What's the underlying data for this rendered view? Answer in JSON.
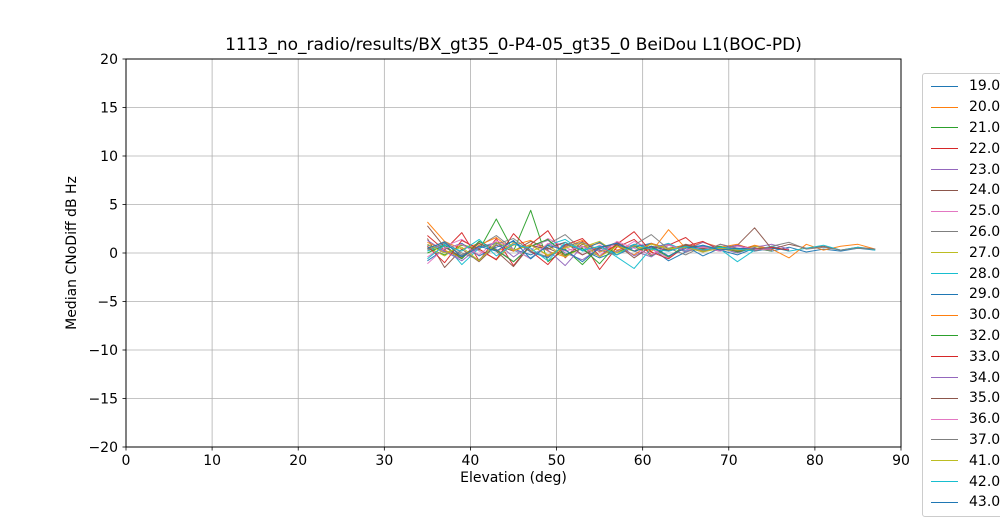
{
  "chart_data": {
    "type": "line",
    "title": "1113_no_radio/results/BX_gt35_0-P4-05_gt35_0 BeiDou L1(BOC-PD)",
    "xlabel": "Elevation (deg)",
    "ylabel": "Median CNoDiff dB Hz",
    "xlim": [
      0,
      90
    ],
    "ylim": [
      -20,
      20
    ],
    "xticks": [
      0,
      10,
      20,
      30,
      40,
      50,
      60,
      70,
      80,
      90
    ],
    "yticks": [
      -20,
      -15,
      -10,
      -5,
      0,
      5,
      10,
      15,
      20
    ],
    "grid": true,
    "grid_color": "#b0b0b0",
    "legend_position": "outside-right",
    "series": [
      {
        "name": "19.0",
        "color": "#1f77b4",
        "x_start": 35,
        "x_step": 2,
        "y": [
          0.8,
          0.2,
          -0.3,
          0.5,
          1.0,
          0.4,
          -0.2,
          0.6,
          1.1,
          0.3,
          -0.5,
          0.2,
          0.9,
          0.5,
          -0.8,
          0.1,
          0.7,
          0.3,
          -0.2,
          0.5,
          0.2,
          0.6,
          0.1,
          0.4,
          0.2,
          0.5,
          0.3
        ]
      },
      {
        "name": "20.0",
        "color": "#ff7f0e",
        "x_start": 35,
        "x_step": 2,
        "y": [
          3.2,
          1.2,
          0.4,
          1.0,
          0.2,
          0.8,
          1.3,
          0.2,
          -0.4,
          0.6,
          1.0,
          0.3,
          0.8,
          0.1,
          2.4,
          0.5,
          1.1,
          0.6,
          0.2,
          0.8,
          0.4,
          -0.5,
          0.9,
          0.3,
          0.7,
          0.9,
          0.4
        ]
      },
      {
        "name": "21.0",
        "color": "#2ca02c",
        "x_start": 35,
        "x_step": 2,
        "y": [
          0.5,
          -0.2,
          0.8,
          0.3,
          3.5,
          0.2,
          4.4,
          -0.9,
          0.4,
          -1.2,
          0.6,
          0.1,
          0.7,
          -0.3,
          0.5,
          0.8,
          0.2,
          0.6,
          0.3,
          0.5,
          0.2
        ]
      },
      {
        "name": "22.0",
        "color": "#d62728",
        "x_start": 35,
        "x_step": 2,
        "y": [
          1.8,
          0.3,
          2.1,
          -0.8,
          1.5,
          -1.3,
          0.9,
          2.3,
          -0.5,
          1.2,
          -1.7,
          0.6,
          1.4,
          -0.2,
          0.8,
          1.6,
          0.1,
          0.9,
          0.4,
          0.7,
          0.3
        ]
      },
      {
        "name": "23.0",
        "color": "#9467bd",
        "x_start": 35,
        "x_step": 2,
        "y": [
          0.9,
          0.1,
          -0.6,
          1.2,
          0.4,
          -0.9,
          0.7,
          1.3,
          0.0,
          -0.7,
          0.5,
          1.0,
          0.2,
          -0.4,
          0.8,
          0.3,
          1.1,
          0.5,
          0.0,
          0.6,
          0.9,
          0.4
        ]
      },
      {
        "name": "24.0",
        "color": "#8c564b",
        "x_start": 35,
        "x_step": 2,
        "y": [
          1.5,
          -1.5,
          0.4,
          -0.9,
          0.8,
          0.2,
          1.2,
          0.5,
          -0.3,
          0.9,
          0.4,
          1.1,
          0.2,
          0.7,
          0.3,
          0.9,
          0.5,
          0.2,
          0.8,
          2.6,
          0.4,
          0.9,
          0.5,
          0.7,
          0.3,
          0.6,
          0.4
        ]
      },
      {
        "name": "25.0",
        "color": "#e377c2",
        "x_start": 35,
        "x_step": 2,
        "y": [
          -0.4,
          0.7,
          1.4,
          0.2,
          -0.6,
          1.0,
          0.3,
          1.5,
          0.6,
          -0.2,
          0.8,
          0.1,
          1.2,
          0.4,
          -0.5,
          0.7,
          0.2,
          0.9,
          0.5,
          0.3,
          0.6
        ]
      },
      {
        "name": "26.0",
        "color": "#7f7f7f",
        "x_start": 35,
        "x_step": 2,
        "y": [
          0.3,
          1.0,
          -0.2,
          0.7,
          1.8,
          0.4,
          -0.6,
          0.9,
          1.9,
          0.3,
          -0.3,
          0.8,
          0.2,
          1.0,
          0.5,
          -0.2,
          0.7,
          0.3,
          0.8,
          0.4,
          0.6,
          0.2
        ]
      },
      {
        "name": "27.0",
        "color": "#bcbd22",
        "x_start": 35,
        "x_step": 2,
        "y": [
          0.6,
          -0.3,
          0.9,
          0.4,
          -0.7,
          1.1,
          0.2,
          0.8,
          -0.4,
          0.6,
          1.2,
          0.0,
          0.7,
          0.3,
          0.9,
          0.1,
          0.6,
          0.4,
          0.2,
          0.7,
          0.3
        ]
      },
      {
        "name": "28.0",
        "color": "#17becf",
        "x_start": 35,
        "x_step": 2,
        "y": [
          0.2,
          0.9,
          -1.2,
          0.5,
          1.1,
          0.3,
          -0.5,
          0.8,
          1.4,
          0.2,
          0.7,
          -0.4,
          -1.6,
          0.5,
          1.0,
          0.2,
          0.8,
          0.4,
          -0.9,
          0.3,
          0.7,
          0.2,
          0.5,
          0.8,
          0.3,
          0.6,
          0.3
        ]
      },
      {
        "name": "29.0",
        "color": "#1f77b4",
        "x_start": 35,
        "x_step": 2,
        "y": [
          -0.8,
          0.4,
          1.0,
          -0.3,
          0.6,
          1.2,
          0.1,
          -0.5,
          0.9,
          0.3,
          1.1,
          -0.2,
          0.6,
          1.0,
          0.2,
          0.7,
          -0.3,
          0.5,
          0.8,
          0.2,
          0.5,
          0.3
        ]
      },
      {
        "name": "30.0",
        "color": "#ff7f0e",
        "x_start": 35,
        "x_step": 2,
        "y": [
          1.1,
          0.3,
          -0.5,
          0.8,
          1.6,
          0.2,
          0.9,
          -0.3,
          0.6,
          1.3,
          0.1,
          0.7,
          -0.2,
          1.0,
          0.4,
          0.8,
          0.2,
          0.6,
          0.9,
          0.3,
          0.5
        ]
      },
      {
        "name": "32.0",
        "color": "#2ca02c",
        "x_start": 35,
        "x_step": 2,
        "y": [
          0.0,
          0.8,
          -0.6,
          1.2,
          0.3,
          -0.9,
          0.7,
          1.4,
          -0.2,
          0.5,
          -1.1,
          0.9,
          0.2,
          0.6,
          -0.4,
          0.8,
          0.3,
          0.7,
          0.1,
          0.5,
          0.3
        ]
      },
      {
        "name": "33.0",
        "color": "#d62728",
        "x_start": 35,
        "x_step": 2,
        "y": [
          0.7,
          -1.0,
          1.3,
          0.4,
          -0.7,
          2.0,
          0.2,
          -1.2,
          0.8,
          1.5,
          -0.3,
          0.9,
          2.2,
          0.1,
          -0.6,
          0.7,
          1.2,
          0.3,
          0.8,
          0.4,
          0.6,
          0.3
        ]
      },
      {
        "name": "34.0",
        "color": "#9467bd",
        "x_start": 35,
        "x_step": 2,
        "y": [
          1.3,
          0.2,
          -0.8,
          0.6,
          1.1,
          -0.4,
          0.8,
          0.3,
          -1.3,
          0.7,
          0.2,
          1.0,
          -0.3,
          0.6,
          0.9,
          0.1,
          0.7,
          0.4,
          0.8,
          0.3,
          0.5
        ]
      },
      {
        "name": "35.0",
        "color": "#8c564b",
        "x_start": 35,
        "x_step": 2,
        "y": [
          2.8,
          0.6,
          -0.4,
          1.0,
          0.2,
          -1.4,
          0.8,
          0.4,
          1.1,
          -0.2,
          0.6,
          0.9,
          -0.5,
          0.7,
          0.2,
          0.8,
          0.4,
          0.6,
          0.2,
          0.5,
          0.3
        ]
      },
      {
        "name": "36.0",
        "color": "#e377c2",
        "x_start": 35,
        "x_step": 2,
        "y": [
          -1.1,
          0.5,
          0.9,
          -0.2,
          1.3,
          0.4,
          -0.6,
          1.0,
          0.2,
          0.7,
          -0.3,
          1.2,
          0.5,
          -0.2,
          0.8,
          0.3,
          0.6,
          0.2,
          0.7,
          0.4,
          0.3
        ]
      },
      {
        "name": "37.0",
        "color": "#7f7f7f",
        "x_start": 35,
        "x_step": 2,
        "y": [
          0.4,
          1.2,
          0.0,
          -0.7,
          0.9,
          1.5,
          0.2,
          -0.4,
          0.7,
          1.1,
          0.3,
          -0.2,
          0.8,
          1.9,
          0.4,
          0.6,
          0.1,
          0.9,
          0.5,
          0.2,
          0.7,
          1.1,
          0.4,
          0.6,
          0.3,
          0.5,
          0.4
        ]
      },
      {
        "name": "41.0",
        "color": "#bcbd22",
        "x_start": 35,
        "x_step": 2,
        "y": [
          0.9,
          0.0,
          0.6,
          -0.8,
          1.1,
          0.3,
          0.8,
          -0.2,
          0.5,
          1.0,
          -0.4,
          0.7,
          0.2,
          0.9,
          0.4,
          0.6,
          0.1,
          0.5,
          0.3,
          0.4
        ]
      },
      {
        "name": "42.0",
        "color": "#17becf",
        "x_start": 35,
        "x_step": 2,
        "y": [
          -0.6,
          0.8,
          0.2,
          1.4,
          -0.3,
          0.9,
          0.5,
          -0.8,
          1.1,
          0.3,
          0.7,
          -0.2,
          0.9,
          0.4,
          0.2,
          0.7,
          0.3,
          0.6,
          0.4,
          0.2
        ]
      },
      {
        "name": "43.0",
        "color": "#1f77b4",
        "x_start": 35,
        "x_step": 2,
        "y": [
          0.5,
          1.1,
          -0.4,
          0.7,
          0.2,
          1.3,
          -0.6,
          0.8,
          0.3,
          -0.9,
          0.6,
          1.0,
          0.2,
          0.7,
          -0.3,
          0.5,
          0.8,
          0.3,
          0.5,
          0.4
        ]
      }
    ]
  },
  "colors": {
    "background": "#ffffff",
    "spine": "#000000",
    "tick": "#000000",
    "grid": "#b0b0b0",
    "legend_border": "#cccccc"
  }
}
